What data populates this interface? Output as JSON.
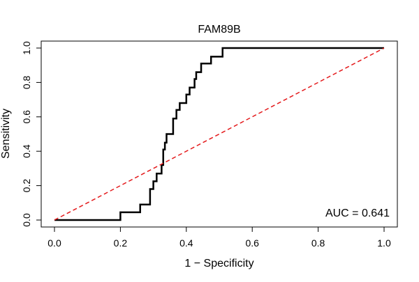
{
  "chart_data": {
    "type": "line",
    "title": "FAM89B",
    "xlabel": "1 − Specificity",
    "ylabel": "Sensitivity",
    "xlim": [
      0,
      1
    ],
    "ylim": [
      0,
      1
    ],
    "x_ticks": [
      "0.0",
      "0.2",
      "0.4",
      "0.6",
      "0.8",
      "1.0"
    ],
    "y_ticks": [
      "0.0",
      "0.2",
      "0.4",
      "0.6",
      "0.8",
      "1.0"
    ],
    "grid": false,
    "annotation": "AUC = 0.641",
    "series": [
      {
        "style": "step",
        "color": "#000000",
        "x": [
          0.0,
          0.2,
          0.2,
          0.26,
          0.26,
          0.29,
          0.29,
          0.3,
          0.3,
          0.31,
          0.31,
          0.325,
          0.325,
          0.33,
          0.33,
          0.335,
          0.335,
          0.34,
          0.34,
          0.345,
          0.345,
          0.36,
          0.36,
          0.37,
          0.37,
          0.38,
          0.38,
          0.4,
          0.4,
          0.41,
          0.41,
          0.425,
          0.425,
          0.43,
          0.43,
          0.445,
          0.445,
          0.475,
          0.475,
          0.51,
          0.51,
          1.0
        ],
        "y": [
          0.0,
          0.0,
          0.045,
          0.045,
          0.09,
          0.09,
          0.18,
          0.18,
          0.225,
          0.225,
          0.27,
          0.27,
          0.32,
          0.32,
          0.41,
          0.41,
          0.45,
          0.45,
          0.5,
          0.5,
          0.5,
          0.5,
          0.59,
          0.59,
          0.64,
          0.64,
          0.68,
          0.68,
          0.73,
          0.73,
          0.77,
          0.77,
          0.82,
          0.82,
          0.86,
          0.86,
          0.91,
          0.91,
          0.95,
          0.95,
          1.0,
          1.0
        ]
      },
      {
        "style": "dashed",
        "color": "#e41a1c",
        "x": [
          0,
          1
        ],
        "y": [
          0,
          1
        ]
      }
    ]
  }
}
